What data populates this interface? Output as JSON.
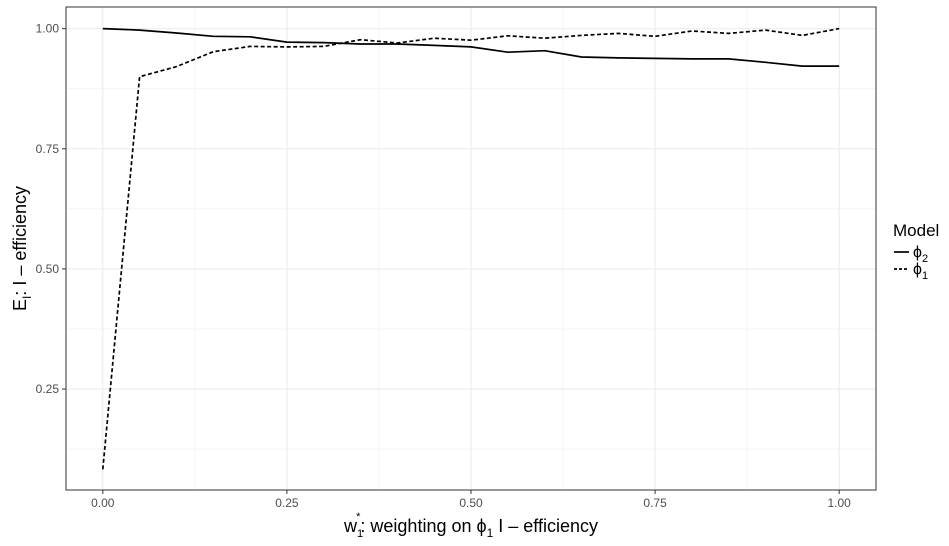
{
  "chart_data": {
    "type": "line",
    "xlabel": {
      "prefix": "w",
      "sub": "1",
      "sup": "*",
      "text": ":  weighting on ",
      "symbol": "ϕ",
      "symbol_sub": "1",
      "suffix": "  I – efficiency"
    },
    "ylabel": {
      "prefix": "E",
      "sub": "I",
      "text": ":   I – efficiency"
    },
    "xlim": [
      -0.05,
      1.05
    ],
    "ylim": [
      0.04,
      1.045
    ],
    "x_ticks": [
      0.0,
      0.25,
      0.5,
      0.75,
      1.0
    ],
    "x_tick_labels": [
      "0.00",
      "0.25",
      "0.50",
      "0.75",
      "1.00"
    ],
    "y_ticks": [
      0.25,
      0.5,
      0.75,
      1.0
    ],
    "y_tick_labels": [
      "0.25",
      "0.50",
      "0.75",
      "1.00"
    ],
    "grid": true,
    "legend": {
      "title": "Model",
      "placement": "right"
    },
    "series": [
      {
        "key": "phi2",
        "symbol": "ϕ",
        "sub": "2",
        "style": "solid",
        "color": "#000000",
        "x": [
          0.0,
          0.05,
          0.1,
          0.15,
          0.2,
          0.25,
          0.3,
          0.35,
          0.4,
          0.45,
          0.5,
          0.55,
          0.6,
          0.65,
          0.7,
          0.75,
          0.8,
          0.85,
          0.9,
          0.95,
          1.0
        ],
        "y": [
          1.0,
          0.997,
          0.991,
          0.984,
          0.983,
          0.972,
          0.971,
          0.968,
          0.968,
          0.965,
          0.962,
          0.951,
          0.954,
          0.941,
          0.939,
          0.938,
          0.937,
          0.937,
          0.93,
          0.922,
          0.922
        ]
      },
      {
        "key": "phi1",
        "symbol": "ϕ",
        "sub": "1",
        "style": "dashed",
        "color": "#000000",
        "x": [
          0.0,
          0.05,
          0.1,
          0.15,
          0.2,
          0.25,
          0.3,
          0.35,
          0.4,
          0.45,
          0.5,
          0.55,
          0.6,
          0.65,
          0.7,
          0.75,
          0.8,
          0.85,
          0.9,
          0.95,
          1.0
        ],
        "y": [
          0.083,
          0.9,
          0.921,
          0.952,
          0.963,
          0.962,
          0.963,
          0.977,
          0.97,
          0.98,
          0.976,
          0.985,
          0.98,
          0.986,
          0.99,
          0.984,
          0.995,
          0.99,
          0.997,
          0.986,
          1.0
        ]
      }
    ]
  }
}
